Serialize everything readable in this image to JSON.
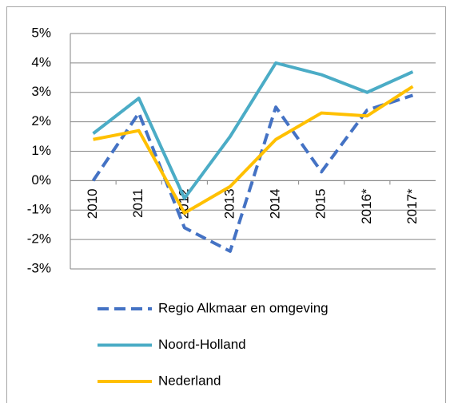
{
  "chart_data": {
    "type": "line",
    "categories": [
      "2010",
      "2011",
      "2012",
      "2013",
      "2014",
      "2015",
      "2016*",
      "2017*"
    ],
    "series": [
      {
        "name": "Regio Alkmaar en omgeving",
        "color": "#4472c4",
        "dashed": true,
        "values": [
          0,
          2.3,
          -1.6,
          -2.4,
          2.5,
          0.3,
          2.4,
          2.9
        ]
      },
      {
        "name": "Noord-Holland",
        "color": "#4bacc6",
        "dashed": false,
        "values": [
          1.6,
          2.8,
          -0.6,
          1.5,
          4.0,
          3.6,
          3.0,
          3.7
        ]
      },
      {
        "name": "Nederland",
        "color": "#ffc000",
        "dashed": false,
        "values": [
          1.4,
          1.7,
          -1.1,
          -0.2,
          1.4,
          2.3,
          2.2,
          3.2
        ]
      }
    ],
    "ylim": [
      -3,
      5
    ],
    "yticks": [
      {
        "value": -3,
        "label": "-3%"
      },
      {
        "value": -2,
        "label": "-2%"
      },
      {
        "value": -1,
        "label": "-1%"
      },
      {
        "value": 0,
        "label": "0%"
      },
      {
        "value": 1,
        "label": "1%"
      },
      {
        "value": 2,
        "label": "2%"
      },
      {
        "value": 3,
        "label": "3%"
      },
      {
        "value": 4,
        "label": "4%"
      },
      {
        "value": 5,
        "label": "5%"
      }
    ],
    "grid": true,
    "legend": "bottom"
  }
}
